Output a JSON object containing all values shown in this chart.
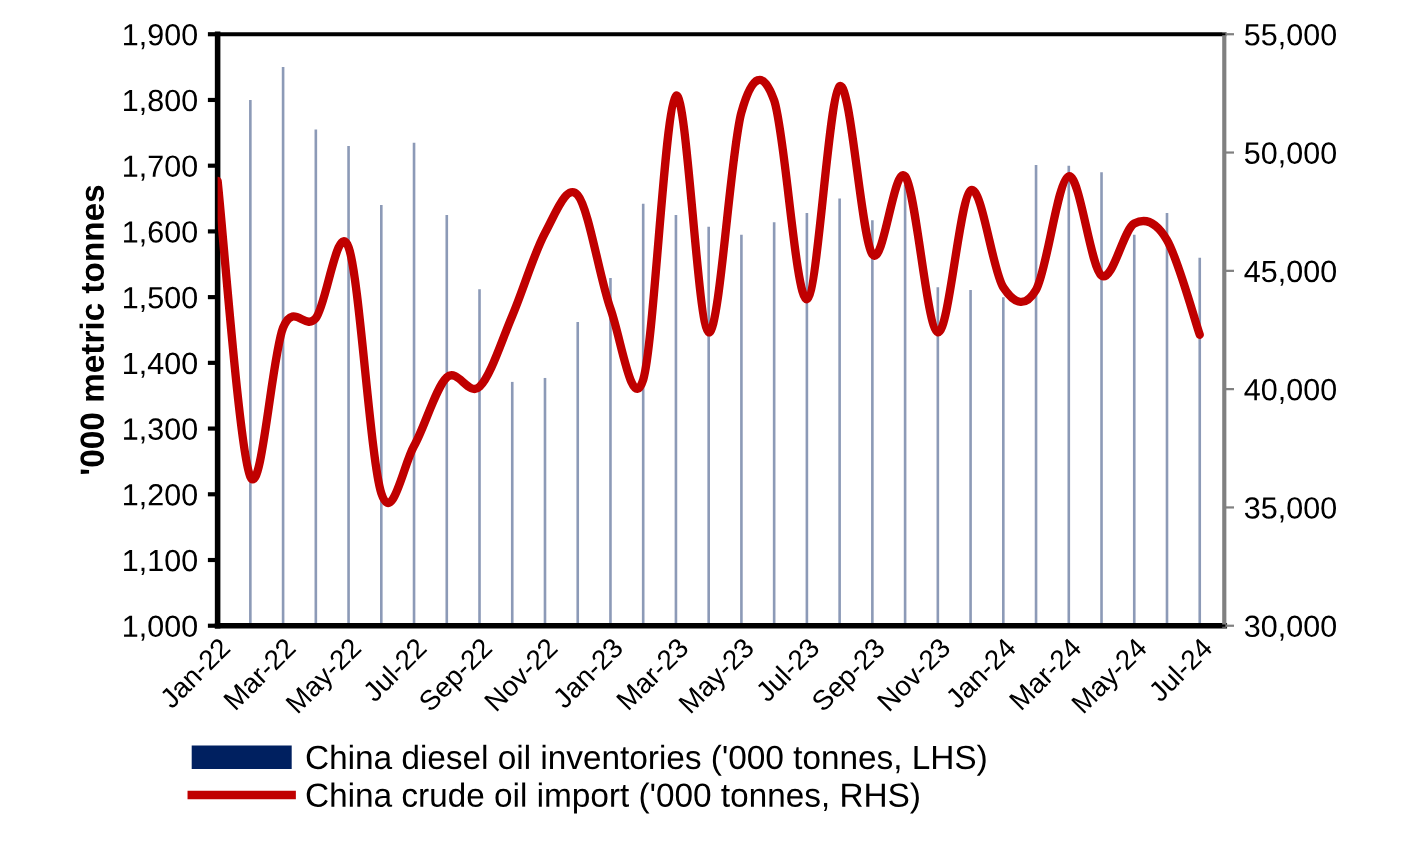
{
  "chart_data": {
    "type": "bar",
    "ylabel": "'000 metric tonnes",
    "categories": [
      "Jan-22",
      null,
      "Mar-22",
      null,
      "May-22",
      null,
      "Jul-22",
      null,
      "Sep-22",
      null,
      "Nov-22",
      null,
      "Jan-23",
      null,
      "Mar-23",
      null,
      "May-23",
      null,
      "Jul-23",
      null,
      "Sep-23",
      null,
      "Nov-23",
      null,
      "Jan-24",
      null,
      "Mar-24",
      null,
      "May-24",
      null,
      "Jul-24"
    ],
    "series": [
      {
        "name": "China diesel oil inventories ('000 tonnes, LHS)",
        "color": "#002060",
        "values": [
          null,
          1800,
          1850,
          1755,
          1730,
          1640,
          1735,
          1625,
          1512,
          1371,
          1377,
          1462,
          1529,
          1642,
          1625,
          1607,
          1595,
          1614,
          1628,
          1650,
          1617,
          1671,
          1515,
          1511,
          1500,
          1701,
          1700,
          1690,
          1595,
          1628,
          1560
        ]
      },
      {
        "name": "China crude oil import ('000 tonnes, RHS)",
        "type": "line",
        "axis": "y2",
        "color": "#c00000",
        "values": [
          48800,
          36300,
          42600,
          43000,
          46000,
          35600,
          37600,
          40500,
          40100,
          43100,
          46600,
          48200,
          43400,
          40400,
          52400,
          42400,
          51700,
          52200,
          43800,
          52800,
          45700,
          49000,
          42400,
          48400,
          44300,
          44200,
          49000,
          44800,
          47000,
          46300,
          42300
        ]
      }
    ],
    "ylim": [
      1000,
      1900
    ],
    "yticks": [
      {
        "value": 1000,
        "label": "1,000"
      },
      {
        "value": 1100,
        "label": "1,100"
      },
      {
        "value": 1200,
        "label": "1,200"
      },
      {
        "value": 1300,
        "label": "1,300"
      },
      {
        "value": 1400,
        "label": "1,400"
      },
      {
        "value": 1500,
        "label": "1,500"
      },
      {
        "value": 1600,
        "label": "1,600"
      },
      {
        "value": 1700,
        "label": "1,700"
      },
      {
        "value": 1800,
        "label": "1,800"
      },
      {
        "value": 1900,
        "label": "1,900"
      }
    ],
    "y2lim": [
      30000,
      55000
    ],
    "y2ticks": [
      {
        "value": 30000,
        "label": "30,000"
      },
      {
        "value": 35000,
        "label": "35,000"
      },
      {
        "value": 40000,
        "label": "40,000"
      },
      {
        "value": 45000,
        "label": "45,000"
      },
      {
        "value": 50000,
        "label": "50,000"
      },
      {
        "value": 55000,
        "label": "55,000"
      }
    ],
    "legend": "bottom",
    "grid": false
  }
}
